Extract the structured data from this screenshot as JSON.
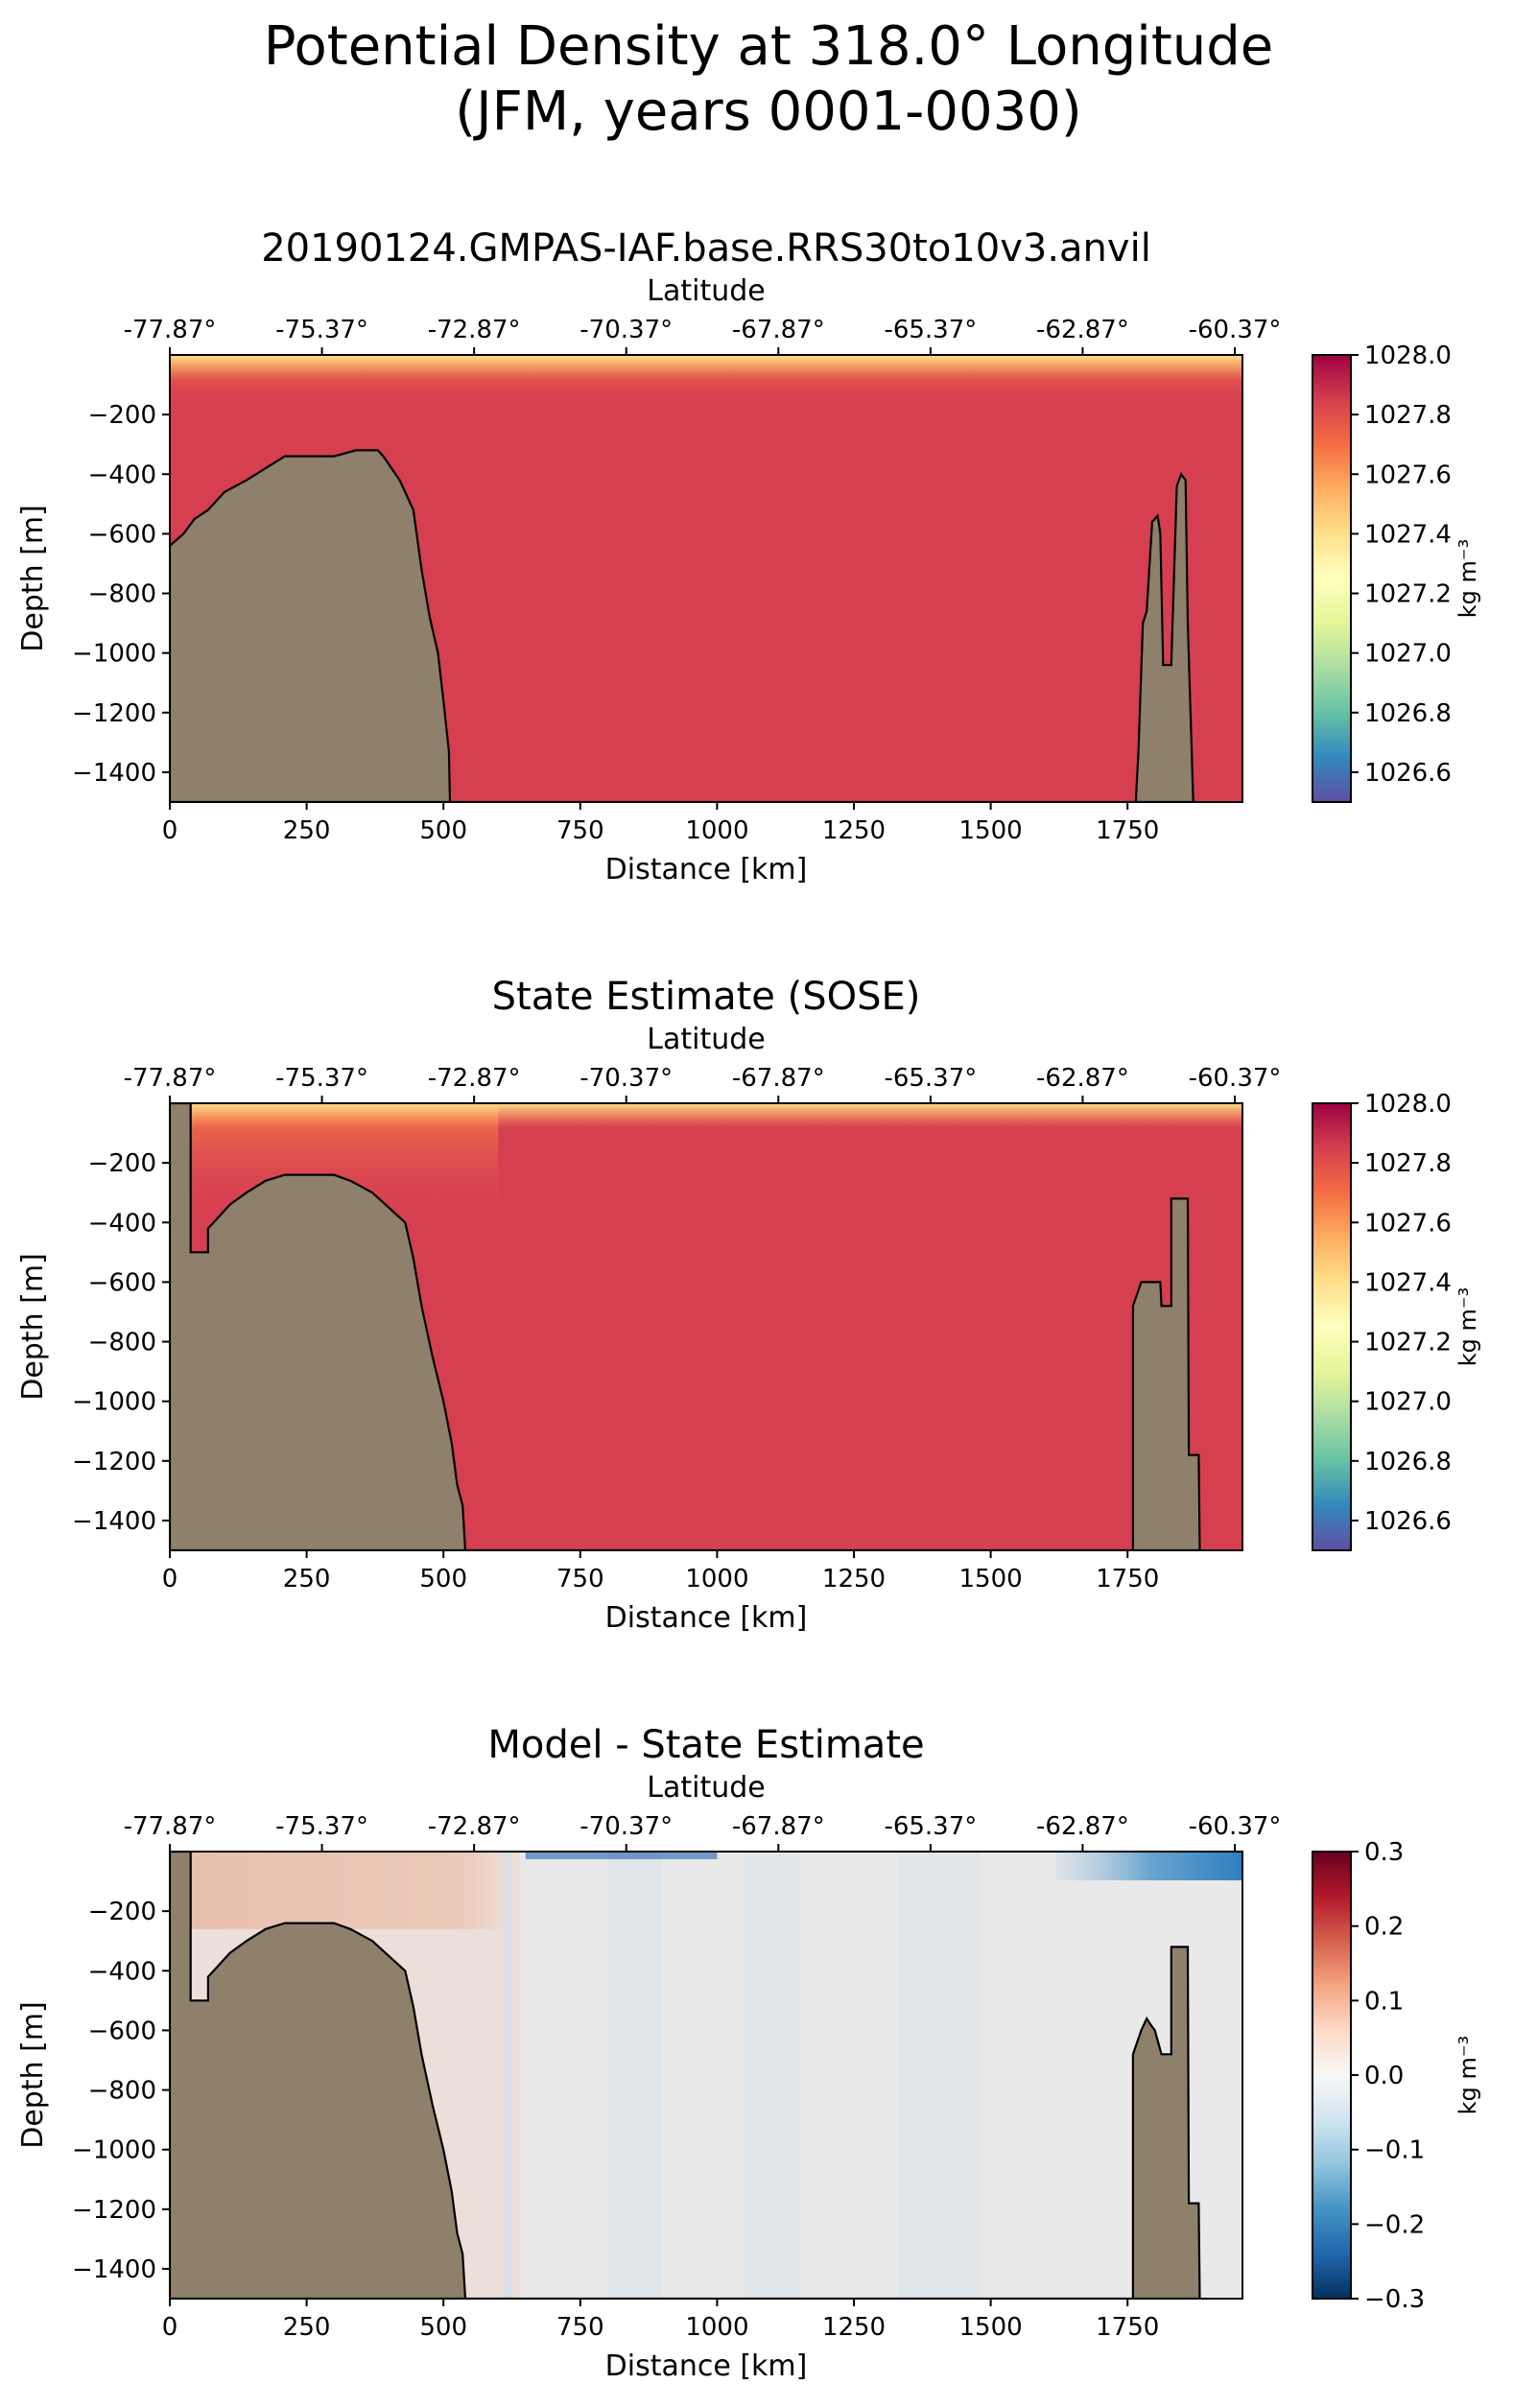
{
  "figure": {
    "title_line1": "Potential Density at 318.0° Longitude",
    "title_line2": "(JFM, years 0001-0030)"
  },
  "chart_data": [
    {
      "type": "heatmap",
      "title": "20190124.GMPAS-IAF.base.RRS30to10v3.anvil",
      "xlabel": "Distance [km]",
      "ylabel": "Depth [m]",
      "top_axis_label": "Latitude",
      "xlim": [
        0,
        1960
      ],
      "ylim": [
        -1500,
        0
      ],
      "xticks": [
        0,
        250,
        500,
        750,
        1000,
        1250,
        1500,
        1750
      ],
      "yticks": [
        -200,
        -400,
        -600,
        -800,
        -1000,
        -1200,
        -1400
      ],
      "top_ticks": [
        {
          "distance": 0,
          "label": "-77.87°"
        },
        {
          "distance": 278,
          "label": "-75.37°"
        },
        {
          "distance": 556,
          "label": "-72.87°"
        },
        {
          "distance": 834,
          "label": "-70.37°"
        },
        {
          "distance": 1112,
          "label": "-67.87°"
        },
        {
          "distance": 1390,
          "label": "-65.37°"
        },
        {
          "distance": 1668,
          "label": "-62.87°"
        },
        {
          "distance": 1946,
          "label": "-60.37°"
        }
      ],
      "colorbar": {
        "label": "kg m⁻³",
        "colormap": "Spectral_r",
        "range": [
          1026.5,
          1028.0
        ],
        "ticks": [
          1028.0,
          1027.8,
          1027.6,
          1027.4,
          1027.2,
          1027.0,
          1026.8,
          1026.6
        ]
      },
      "field": {
        "interior_value": 1027.85,
        "upper_value": 1027.7,
        "surface_value": 1027.3,
        "upper_layer_depth": 180
      },
      "bathymetry": {
        "fill_color": "#8e806a",
        "profile": [
          [
            0,
            -640
          ],
          [
            25,
            -600
          ],
          [
            45,
            -550
          ],
          [
            70,
            -520
          ],
          [
            100,
            -460
          ],
          [
            140,
            -420
          ],
          [
            175,
            -380
          ],
          [
            210,
            -340
          ],
          [
            300,
            -340
          ],
          [
            340,
            -320
          ],
          [
            380,
            -320
          ],
          [
            390,
            -340
          ],
          [
            420,
            -420
          ],
          [
            445,
            -520
          ],
          [
            460,
            -720
          ],
          [
            475,
            -880
          ],
          [
            490,
            -1000
          ],
          [
            500,
            -1160
          ],
          [
            510,
            -1330
          ],
          [
            512,
            -1500
          ],
          [
            1765,
            -1500
          ],
          [
            1770,
            -1330
          ],
          [
            1778,
            -900
          ],
          [
            1785,
            -860
          ],
          [
            1795,
            -560
          ],
          [
            1805,
            -540
          ],
          [
            1810,
            -600
          ],
          [
            1815,
            -1040
          ],
          [
            1830,
            -1040
          ],
          [
            1840,
            -440
          ],
          [
            1848,
            -400
          ],
          [
            1856,
            -420
          ],
          [
            1860,
            -900
          ],
          [
            1870,
            -1500
          ]
        ]
      }
    },
    {
      "type": "heatmap",
      "title": "State Estimate (SOSE)",
      "xlabel": "Distance [km]",
      "ylabel": "Depth [m]",
      "top_axis_label": "Latitude",
      "xlim": [
        0,
        1960
      ],
      "ylim": [
        -1500,
        0
      ],
      "xticks": [
        0,
        250,
        500,
        750,
        1000,
        1250,
        1500,
        1750
      ],
      "yticks": [
        -200,
        -400,
        -600,
        -800,
        -1000,
        -1200,
        -1400
      ],
      "top_ticks": [
        {
          "distance": 0,
          "label": "-77.87°"
        },
        {
          "distance": 278,
          "label": "-75.37°"
        },
        {
          "distance": 556,
          "label": "-72.87°"
        },
        {
          "distance": 834,
          "label": "-70.37°"
        },
        {
          "distance": 1112,
          "label": "-67.87°"
        },
        {
          "distance": 1390,
          "label": "-65.37°"
        },
        {
          "distance": 1668,
          "label": "-62.87°"
        },
        {
          "distance": 1946,
          "label": "-60.37°"
        }
      ],
      "colorbar": {
        "label": "kg m⁻³",
        "colormap": "Spectral_r",
        "range": [
          1026.5,
          1028.0
        ],
        "ticks": [
          1028.0,
          1027.8,
          1027.6,
          1027.4,
          1027.2,
          1027.0,
          1026.8,
          1026.6
        ]
      },
      "field": {
        "interior_value": 1027.85,
        "upper_value": 1027.6,
        "surface_value": 1027.1,
        "upper_layer_depth": 400,
        "upper_layer_extent": 600
      },
      "bathymetry": {
        "fill_color": "#8e806a",
        "profile": [
          [
            0,
            0
          ],
          [
            38,
            0
          ],
          [
            38,
            -500
          ],
          [
            70,
            -500
          ],
          [
            70,
            -420
          ],
          [
            90,
            -380
          ],
          [
            110,
            -340
          ],
          [
            140,
            -300
          ],
          [
            175,
            -260
          ],
          [
            210,
            -240
          ],
          [
            300,
            -240
          ],
          [
            330,
            -260
          ],
          [
            370,
            -300
          ],
          [
            430,
            -400
          ],
          [
            445,
            -520
          ],
          [
            460,
            -680
          ],
          [
            480,
            -850
          ],
          [
            500,
            -1000
          ],
          [
            515,
            -1140
          ],
          [
            525,
            -1280
          ],
          [
            535,
            -1350
          ],
          [
            540,
            -1500
          ],
          [
            1760,
            -1500
          ],
          [
            1760,
            -680
          ],
          [
            1775,
            -600
          ],
          [
            1810,
            -600
          ],
          [
            1812,
            -680
          ],
          [
            1830,
            -680
          ],
          [
            1830,
            -320
          ],
          [
            1860,
            -320
          ],
          [
            1862,
            -1180
          ],
          [
            1880,
            -1180
          ],
          [
            1882,
            -1500
          ]
        ]
      }
    },
    {
      "type": "heatmap",
      "title": "Model - State Estimate",
      "xlabel": "Distance [km]",
      "ylabel": "Depth [m]",
      "top_axis_label": "Latitude",
      "xlim": [
        0,
        1960
      ],
      "ylim": [
        -1500,
        0
      ],
      "xticks": [
        0,
        250,
        500,
        750,
        1000,
        1250,
        1500,
        1750
      ],
      "yticks": [
        -200,
        -400,
        -600,
        -800,
        -1000,
        -1200,
        -1400
      ],
      "top_ticks": [
        {
          "distance": 0,
          "label": "-77.87°"
        },
        {
          "distance": 278,
          "label": "-75.37°"
        },
        {
          "distance": 556,
          "label": "-72.87°"
        },
        {
          "distance": 834,
          "label": "-70.37°"
        },
        {
          "distance": 1112,
          "label": "-67.87°"
        },
        {
          "distance": 1390,
          "label": "-65.37°"
        },
        {
          "distance": 1668,
          "label": "-62.87°"
        },
        {
          "distance": 1946,
          "label": "-60.37°"
        }
      ],
      "colorbar": {
        "label": "kg m⁻³",
        "colormap": "RdBu_r",
        "range": [
          -0.3,
          0.3
        ],
        "ticks": [
          "0.3",
          "0.2",
          "0.1",
          "0.0",
          "−0.1",
          "−0.2",
          "−0.3"
        ]
      },
      "field": {
        "west_upper_value": 0.1,
        "west_upper_extent": 620,
        "west_upper_depth": 260,
        "interior_value": -0.02,
        "surface_east_value": -0.12
      },
      "bathymetry": {
        "fill_color": "#8e806a",
        "profile": [
          [
            0,
            0
          ],
          [
            38,
            0
          ],
          [
            38,
            -500
          ],
          [
            70,
            -500
          ],
          [
            70,
            -420
          ],
          [
            90,
            -380
          ],
          [
            110,
            -340
          ],
          [
            140,
            -300
          ],
          [
            175,
            -260
          ],
          [
            210,
            -240
          ],
          [
            300,
            -240
          ],
          [
            330,
            -260
          ],
          [
            370,
            -300
          ],
          [
            430,
            -400
          ],
          [
            445,
            -520
          ],
          [
            460,
            -680
          ],
          [
            480,
            -850
          ],
          [
            500,
            -1000
          ],
          [
            515,
            -1140
          ],
          [
            525,
            -1280
          ],
          [
            535,
            -1350
          ],
          [
            540,
            -1500
          ],
          [
            1760,
            -1500
          ],
          [
            1760,
            -680
          ],
          [
            1775,
            -600
          ],
          [
            1785,
            -560
          ],
          [
            1792,
            -580
          ],
          [
            1800,
            -600
          ],
          [
            1812,
            -680
          ],
          [
            1830,
            -680
          ],
          [
            1830,
            -320
          ],
          [
            1860,
            -320
          ],
          [
            1862,
            -1180
          ],
          [
            1880,
            -1180
          ],
          [
            1882,
            -1500
          ]
        ]
      }
    }
  ]
}
